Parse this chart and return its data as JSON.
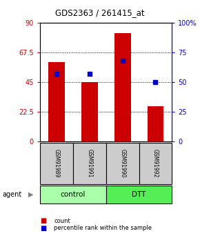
{
  "title": "GDS2363 / 261415_at",
  "samples": [
    "GSM91989",
    "GSM91991",
    "GSM91990",
    "GSM91992"
  ],
  "bar_values": [
    60,
    45,
    82,
    27
  ],
  "percentile_values": [
    57,
    57,
    68,
    50
  ],
  "bar_color": "#cc0000",
  "percentile_color": "#0000cc",
  "ylim_left": [
    0,
    90
  ],
  "ylim_right": [
    0,
    100
  ],
  "yticks_left": [
    0,
    22.5,
    45,
    67.5,
    90
  ],
  "yticks_right": [
    0,
    25,
    50,
    75,
    100
  ],
  "ytick_labels_left": [
    "0",
    "22.5",
    "45",
    "67.5",
    "90"
  ],
  "ytick_labels_right": [
    "0",
    "25",
    "50",
    "75",
    "100%"
  ],
  "groups": [
    {
      "label": "control",
      "n_samples": 2,
      "color": "#aaffaa"
    },
    {
      "label": "DTT",
      "n_samples": 2,
      "color": "#55ee55"
    }
  ],
  "agent_label": "agent",
  "bar_width": 0.5,
  "background_color": "#ffffff"
}
